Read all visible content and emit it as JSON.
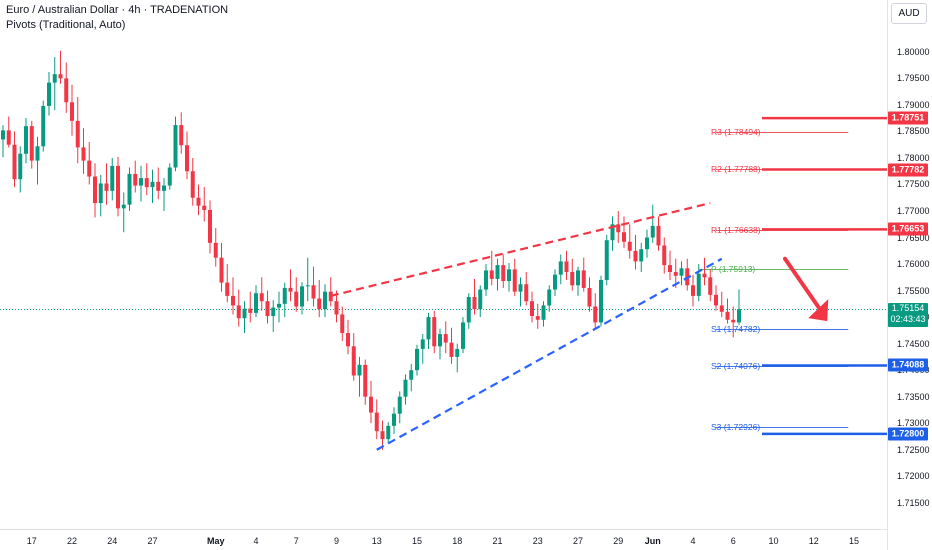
{
  "header": {
    "title": "Euro / Australian Dollar · 4h · TRADENATION",
    "indicator": "Pivots (Traditional, Auto)"
  },
  "currency_button": "AUD",
  "current_price": {
    "value": "1.75154",
    "countdown": "02:43:43"
  },
  "colors": {
    "up": "#089981",
    "down": "#f23645",
    "resistance": "#f23645",
    "support": "#1e5fe8",
    "pivot": "#4caf50",
    "trend_upper": "#f23645",
    "trend_lower": "#2962ff",
    "arrow": "#f23645"
  },
  "chart_data": {
    "type": "candlestick",
    "symbol": "EURAUD",
    "timeframe": "4h",
    "y_axis": {
      "min": 1.711,
      "max": 1.8045,
      "ticks": [
        "1.80000",
        "1.79500",
        "1.79000",
        "1.78500",
        "1.78000",
        "1.77500",
        "1.77000",
        "1.76500",
        "1.76000",
        "1.75500",
        "1.75000",
        "1.74500",
        "1.74000",
        "1.73500",
        "1.73000",
        "1.72500",
        "1.72000",
        "1.71500"
      ]
    },
    "x_axis": {
      "ticks": [
        {
          "label": "17",
          "bar": 5
        },
        {
          "label": "22",
          "bar": 12
        },
        {
          "label": "24",
          "bar": 19
        },
        {
          "label": "27",
          "bar": 26
        },
        {
          "label": "May",
          "bar": 37,
          "strong": true
        },
        {
          "label": "4",
          "bar": 44
        },
        {
          "label": "7",
          "bar": 51
        },
        {
          "label": "9",
          "bar": 58
        },
        {
          "label": "13",
          "bar": 65
        },
        {
          "label": "15",
          "bar": 72
        },
        {
          "label": "18",
          "bar": 79
        },
        {
          "label": "21",
          "bar": 86
        },
        {
          "label": "23",
          "bar": 93
        },
        {
          "label": "27",
          "bar": 100
        },
        {
          "label": "29",
          "bar": 107
        },
        {
          "label": "Jun",
          "bar": 113,
          "strong": true
        },
        {
          "label": "4",
          "bar": 120
        },
        {
          "label": "6",
          "bar": 127
        },
        {
          "label": "10",
          "bar": 134
        },
        {
          "label": "12",
          "bar": 141
        },
        {
          "label": "15",
          "bar": 148
        }
      ]
    },
    "bar_count_axis": 149,
    "ohlc": [
      [
        1.7835,
        1.7862,
        1.7801,
        1.7852
      ],
      [
        1.7852,
        1.7878,
        1.782,
        1.7825
      ],
      [
        1.7825,
        1.785,
        1.7745,
        1.776
      ],
      [
        1.776,
        1.7822,
        1.7735,
        1.7808
      ],
      [
        1.7808,
        1.7875,
        1.779,
        1.786
      ],
      [
        1.786,
        1.787,
        1.778,
        1.7795
      ],
      [
        1.7795,
        1.784,
        1.775,
        1.7822
      ],
      [
        1.7822,
        1.7908,
        1.7812,
        1.7898
      ],
      [
        1.7898,
        1.7962,
        1.788,
        1.7942
      ],
      [
        1.7942,
        1.799,
        1.789,
        1.7958
      ],
      [
        1.7958,
        1.8002,
        1.794,
        1.795
      ],
      [
        1.795,
        1.798,
        1.7885,
        1.7905
      ],
      [
        1.7905,
        1.7938,
        1.7842,
        1.787
      ],
      [
        1.787,
        1.7915,
        1.779,
        1.782
      ],
      [
        1.782,
        1.7856,
        1.777,
        1.7795
      ],
      [
        1.7795,
        1.783,
        1.775,
        1.7765
      ],
      [
        1.7765,
        1.779,
        1.7688,
        1.7715
      ],
      [
        1.7715,
        1.7768,
        1.769,
        1.7752
      ],
      [
        1.7752,
        1.779,
        1.7712,
        1.7738
      ],
      [
        1.7738,
        1.78,
        1.772,
        1.7785
      ],
      [
        1.7785,
        1.7802,
        1.769,
        1.7705
      ],
      [
        1.7705,
        1.7735,
        1.766,
        1.7712
      ],
      [
        1.7712,
        1.7782,
        1.77,
        1.777
      ],
      [
        1.777,
        1.7795,
        1.7735,
        1.7748
      ],
      [
        1.7748,
        1.7785,
        1.7718,
        1.7762
      ],
      [
        1.7762,
        1.779,
        1.773,
        1.7745
      ],
      [
        1.7745,
        1.7778,
        1.7715,
        1.7755
      ],
      [
        1.7755,
        1.7782,
        1.7722,
        1.7738
      ],
      [
        1.7738,
        1.7762,
        1.77,
        1.7748
      ],
      [
        1.7748,
        1.779,
        1.774,
        1.7782
      ],
      [
        1.7782,
        1.7878,
        1.7775,
        1.7862
      ],
      [
        1.7862,
        1.7886,
        1.7808,
        1.7824
      ],
      [
        1.7824,
        1.785,
        1.776,
        1.7775
      ],
      [
        1.7775,
        1.78,
        1.771,
        1.7725
      ],
      [
        1.7725,
        1.775,
        1.7692,
        1.771
      ],
      [
        1.771,
        1.7745,
        1.768,
        1.7702
      ],
      [
        1.7702,
        1.772,
        1.762,
        1.764
      ],
      [
        1.764,
        1.7668,
        1.7595,
        1.7612
      ],
      [
        1.7612,
        1.764,
        1.7548,
        1.7565
      ],
      [
        1.7565,
        1.76,
        1.7528,
        1.754
      ],
      [
        1.754,
        1.7575,
        1.7505,
        1.7522
      ],
      [
        1.7522,
        1.7552,
        1.7482,
        1.7498
      ],
      [
        1.7498,
        1.753,
        1.747,
        1.7516
      ],
      [
        1.7516,
        1.7548,
        1.749,
        1.7508
      ],
      [
        1.7508,
        1.756,
        1.75,
        1.7545
      ],
      [
        1.7545,
        1.7575,
        1.7512,
        1.753
      ],
      [
        1.753,
        1.755,
        1.7488,
        1.7502
      ],
      [
        1.7502,
        1.7532,
        1.7472,
        1.7518
      ],
      [
        1.7518,
        1.7548,
        1.749,
        1.7525
      ],
      [
        1.7525,
        1.7565,
        1.75,
        1.7555
      ],
      [
        1.7555,
        1.759,
        1.753,
        1.7548
      ],
      [
        1.7548,
        1.7575,
        1.751,
        1.752
      ],
      [
        1.752,
        1.7566,
        1.7505,
        1.7558
      ],
      [
        1.7558,
        1.7612,
        1.753,
        1.756
      ],
      [
        1.756,
        1.7595,
        1.752,
        1.7535
      ],
      [
        1.7535,
        1.757,
        1.75,
        1.7515
      ],
      [
        1.7515,
        1.7562,
        1.75,
        1.7548
      ],
      [
        1.7548,
        1.7575,
        1.752,
        1.753
      ],
      [
        1.753,
        1.755,
        1.749,
        1.7505
      ],
      [
        1.7505,
        1.752,
        1.7455,
        1.747
      ],
      [
        1.747,
        1.7495,
        1.743,
        1.7445
      ],
      [
        1.7445,
        1.747,
        1.738,
        1.739
      ],
      [
        1.739,
        1.7425,
        1.735,
        1.741
      ],
      [
        1.741,
        1.742,
        1.7335,
        1.735
      ],
      [
        1.735,
        1.738,
        1.73,
        1.732
      ],
      [
        1.732,
        1.7345,
        1.727,
        1.7285
      ],
      [
        1.7285,
        1.7305,
        1.725,
        1.727
      ],
      [
        1.727,
        1.7302,
        1.7262,
        1.7295
      ],
      [
        1.7295,
        1.733,
        1.728,
        1.7318
      ],
      [
        1.7318,
        1.736,
        1.73,
        1.735
      ],
      [
        1.735,
        1.7392,
        1.7335,
        1.7382
      ],
      [
        1.7382,
        1.7412,
        1.736,
        1.74
      ],
      [
        1.74,
        1.7448,
        1.739,
        1.744
      ],
      [
        1.744,
        1.7468,
        1.7412,
        1.7458
      ],
      [
        1.7458,
        1.7508,
        1.744,
        1.75
      ],
      [
        1.75,
        1.7512,
        1.7432,
        1.7445
      ],
      [
        1.7445,
        1.7478,
        1.742,
        1.7468
      ],
      [
        1.7468,
        1.7492,
        1.7432,
        1.7452
      ],
      [
        1.7452,
        1.748,
        1.7412,
        1.7425
      ],
      [
        1.7425,
        1.745,
        1.7396,
        1.744
      ],
      [
        1.744,
        1.75,
        1.7432,
        1.749
      ],
      [
        1.749,
        1.7545,
        1.7478,
        1.7538
      ],
      [
        1.7538,
        1.7572,
        1.7505,
        1.7515
      ],
      [
        1.7515,
        1.756,
        1.75,
        1.7552
      ],
      [
        1.7552,
        1.76,
        1.754,
        1.7588
      ],
      [
        1.7588,
        1.7625,
        1.756,
        1.7572
      ],
      [
        1.7572,
        1.761,
        1.755,
        1.7598
      ],
      [
        1.7598,
        1.7618,
        1.7555,
        1.7568
      ],
      [
        1.7568,
        1.7602,
        1.7548,
        1.759
      ],
      [
        1.759,
        1.761,
        1.754,
        1.7548
      ],
      [
        1.7548,
        1.7575,
        1.752,
        1.7562
      ],
      [
        1.7562,
        1.7585,
        1.7522,
        1.753
      ],
      [
        1.753,
        1.7548,
        1.749,
        1.7502
      ],
      [
        1.7502,
        1.7525,
        1.7478,
        1.7495
      ],
      [
        1.7495,
        1.753,
        1.7482,
        1.7522
      ],
      [
        1.7522,
        1.756,
        1.751,
        1.7552
      ],
      [
        1.7552,
        1.759,
        1.754,
        1.758
      ],
      [
        1.758,
        1.7618,
        1.7562,
        1.7605
      ],
      [
        1.7605,
        1.7625,
        1.757,
        1.7585
      ],
      [
        1.7585,
        1.761,
        1.755,
        1.756
      ],
      [
        1.756,
        1.7595,
        1.754,
        1.7588
      ],
      [
        1.7588,
        1.7612,
        1.7548,
        1.7555
      ],
      [
        1.7555,
        1.7575,
        1.751,
        1.752
      ],
      [
        1.752,
        1.7545,
        1.748,
        1.749
      ],
      [
        1.749,
        1.7578,
        1.7482,
        1.757
      ],
      [
        1.757,
        1.7655,
        1.756,
        1.7645
      ],
      [
        1.7645,
        1.769,
        1.7625,
        1.7675
      ],
      [
        1.7675,
        1.77,
        1.764,
        1.766
      ],
      [
        1.766,
        1.769,
        1.763,
        1.7642
      ],
      [
        1.7642,
        1.7675,
        1.761,
        1.7625
      ],
      [
        1.7625,
        1.7655,
        1.759,
        1.7605
      ],
      [
        1.7605,
        1.764,
        1.7585,
        1.7628
      ],
      [
        1.7628,
        1.7665,
        1.7612,
        1.765
      ],
      [
        1.765,
        1.7712,
        1.764,
        1.7672
      ],
      [
        1.7672,
        1.769,
        1.7625,
        1.7635
      ],
      [
        1.7635,
        1.765,
        1.7582,
        1.7598
      ],
      [
        1.7598,
        1.7625,
        1.757,
        1.7585
      ],
      [
        1.7585,
        1.761,
        1.7555,
        1.7578
      ],
      [
        1.7578,
        1.7605,
        1.756,
        1.7592
      ],
      [
        1.7592,
        1.761,
        1.755,
        1.756
      ],
      [
        1.756,
        1.758,
        1.752,
        1.754
      ],
      [
        1.754,
        1.76,
        1.753,
        1.7582
      ],
      [
        1.7582,
        1.7612,
        1.756,
        1.7575
      ],
      [
        1.7575,
        1.759,
        1.753,
        1.7542
      ],
      [
        1.7542,
        1.756,
        1.7512,
        1.7522
      ],
      [
        1.7522,
        1.7548,
        1.75,
        1.751
      ],
      [
        1.751,
        1.7535,
        1.7488,
        1.7495
      ],
      [
        1.7495,
        1.752,
        1.7462,
        1.749
      ],
      [
        1.749,
        1.7552,
        1.7485,
        1.7515
      ]
    ],
    "pivots": [
      {
        "label": "R3 (1.78494)",
        "value": 1.78494,
        "type": "resistance"
      },
      {
        "label": "R2 (1.77788)",
        "value": 1.77788,
        "type": "resistance"
      },
      {
        "label": "R1 (1.76638)",
        "value": 1.76638,
        "type": "resistance"
      },
      {
        "label": "P (1.75913)",
        "value": 1.75913,
        "type": "pivot"
      },
      {
        "label": "S1 (1.74782)",
        "value": 1.74782,
        "type": "support"
      },
      {
        "label": "S2 (1.74076)",
        "value": 1.74076,
        "type": "support"
      },
      {
        "label": "S3 (1.72926)",
        "value": 1.72926,
        "type": "support"
      }
    ],
    "key_levels": [
      {
        "value": 1.78751,
        "label": "1.78751",
        "type": "resistance"
      },
      {
        "value": 1.77782,
        "label": "1.77782",
        "type": "resistance"
      },
      {
        "value": 1.76653,
        "label": "1.76653",
        "type": "resistance"
      },
      {
        "value": 1.74088,
        "label": "1.74088",
        "type": "support"
      },
      {
        "value": 1.728,
        "label": "1.72800",
        "type": "support"
      }
    ],
    "trendlines": [
      {
        "name": "rising-wedge-upper",
        "style": "dashed",
        "color": "#f23645",
        "from": {
          "bar": 57,
          "price": 1.754
        },
        "to": {
          "bar": 123,
          "price": 1.7715
        }
      },
      {
        "name": "rising-wedge-lower",
        "style": "dashed",
        "color": "#2962ff",
        "from": {
          "bar": 65,
          "price": 1.725
        },
        "to": {
          "bar": 125,
          "price": 1.761
        }
      }
    ]
  }
}
